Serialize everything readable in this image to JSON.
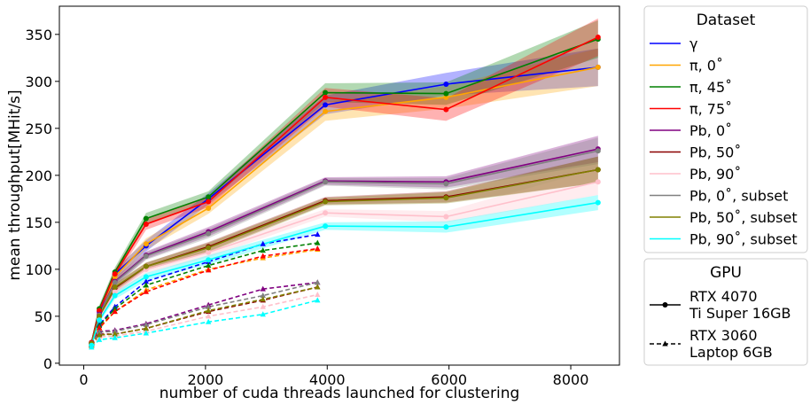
{
  "chart_data": {
    "type": "line",
    "xlabel": "number of cuda threads launched for clustering",
    "ylabel": "mean throughput[MHit/s]",
    "xlim": [
      -400,
      8800
    ],
    "ylim": [
      -2,
      380
    ],
    "xticks": [
      0,
      2000,
      4000,
      6000,
      8000
    ],
    "yticks": [
      0,
      50,
      100,
      150,
      200,
      250,
      300,
      350
    ],
    "grid": false,
    "legend_dataset": {
      "title": "Dataset",
      "placement": "right-top",
      "entries": [
        "γ",
        "π, 0˚",
        "π, 45˚",
        "π, 75˚",
        "Pb, 0˚",
        "Pb, 50˚",
        "Pb, 90˚",
        "Pb, 0˚, subset",
        "Pb, 50˚, subset",
        "Pb, 90˚, subset"
      ]
    },
    "legend_gpu": {
      "title": "GPU",
      "placement": "right-bottom",
      "entries": [
        {
          "label_line1": "RTX 4070",
          "label_line2": "Ti Super 16GB",
          "style": "solid",
          "marker": "circle"
        },
        {
          "label_line1": "RTX 3060",
          "label_line2": "Laptop 6GB",
          "style": "dashed",
          "marker": "triangle"
        }
      ]
    },
    "x_rtx4070": [
      128,
      256,
      512,
      1024,
      2048,
      3968,
      5952,
      8448
    ],
    "x_rtx3060": [
      128,
      256,
      512,
      1024,
      2048,
      2944,
      3840
    ],
    "series": [
      {
        "color": "#0000ff",
        "rtx4070": [
          22,
          55,
          95,
          125,
          175,
          275,
          297,
          315
        ],
        "band": [
          3,
          4,
          5,
          6,
          6,
          10,
          12,
          20
        ],
        "rtx3060": [
          22,
          41,
          60,
          87,
          108,
          127,
          137
        ]
      },
      {
        "color": "#ffa500",
        "rtx4070": [
          20,
          50,
          92,
          127,
          165,
          268,
          283,
          315
        ],
        "band": [
          3,
          4,
          5,
          6,
          6,
          10,
          12,
          20
        ],
        "rtx3060": [
          19,
          37,
          55,
          78,
          100,
          112,
          121
        ]
      },
      {
        "color": "#008000",
        "rtx4070": [
          22,
          58,
          97,
          154,
          177,
          288,
          287,
          345
        ],
        "band": [
          3,
          4,
          5,
          6,
          6,
          10,
          12,
          20
        ],
        "rtx3060": [
          21,
          40,
          58,
          83,
          104,
          120,
          128
        ]
      },
      {
        "color": "#ff0000",
        "rtx4070": [
          22,
          56,
          95,
          148,
          172,
          283,
          270,
          347
        ],
        "band": [
          3,
          4,
          5,
          6,
          6,
          10,
          12,
          20
        ],
        "rtx3060": [
          20,
          38,
          55,
          76,
          99,
          114,
          122
        ]
      },
      {
        "color": "#800080",
        "rtx4070": [
          21,
          52,
          87,
          115,
          140,
          194,
          193,
          228
        ],
        "band": [
          2,
          3,
          4,
          4,
          5,
          4,
          6,
          14
        ],
        "rtx3060": [
          20,
          34,
          35,
          42,
          62,
          79,
          86
        ]
      },
      {
        "color": "#8b0000",
        "rtx4070": [
          21,
          50,
          80,
          103,
          124,
          173,
          177,
          206
        ],
        "band": [
          2,
          3,
          4,
          4,
          5,
          4,
          6,
          14
        ],
        "rtx3060": [
          19,
          31,
          31,
          37,
          55,
          67,
          81
        ]
      },
      {
        "color": "#ffc0cb",
        "rtx4070": [
          20,
          47,
          76,
          100,
          118,
          160,
          156,
          193
        ],
        "band": [
          2,
          3,
          4,
          4,
          5,
          4,
          6,
          14
        ],
        "rtx3060": [
          18,
          28,
          29,
          34,
          50,
          60,
          73
        ]
      },
      {
        "color": "#808080",
        "rtx4070": [
          21,
          51,
          86,
          114,
          138,
          193,
          191,
          226
        ],
        "band": [
          2,
          3,
          4,
          4,
          5,
          4,
          6,
          14
        ],
        "rtx3060": [
          20,
          33,
          34,
          41,
          60,
          72,
          86
        ]
      },
      {
        "color": "#808000",
        "rtx4070": [
          21,
          50,
          81,
          103,
          123,
          172,
          176,
          206
        ],
        "band": [
          2,
          3,
          4,
          4,
          5,
          4,
          6,
          14
        ],
        "rtx3060": [
          19,
          30,
          31,
          37,
          56,
          68,
          81
        ]
      },
      {
        "color": "#00ffff",
        "rtx4070": [
          19,
          46,
          72,
          92,
          110,
          146,
          145,
          171
        ],
        "band": [
          2,
          3,
          4,
          4,
          5,
          4,
          6,
          8
        ],
        "rtx3060": [
          17,
          25,
          27,
          32,
          44,
          52,
          67
        ]
      }
    ]
  }
}
